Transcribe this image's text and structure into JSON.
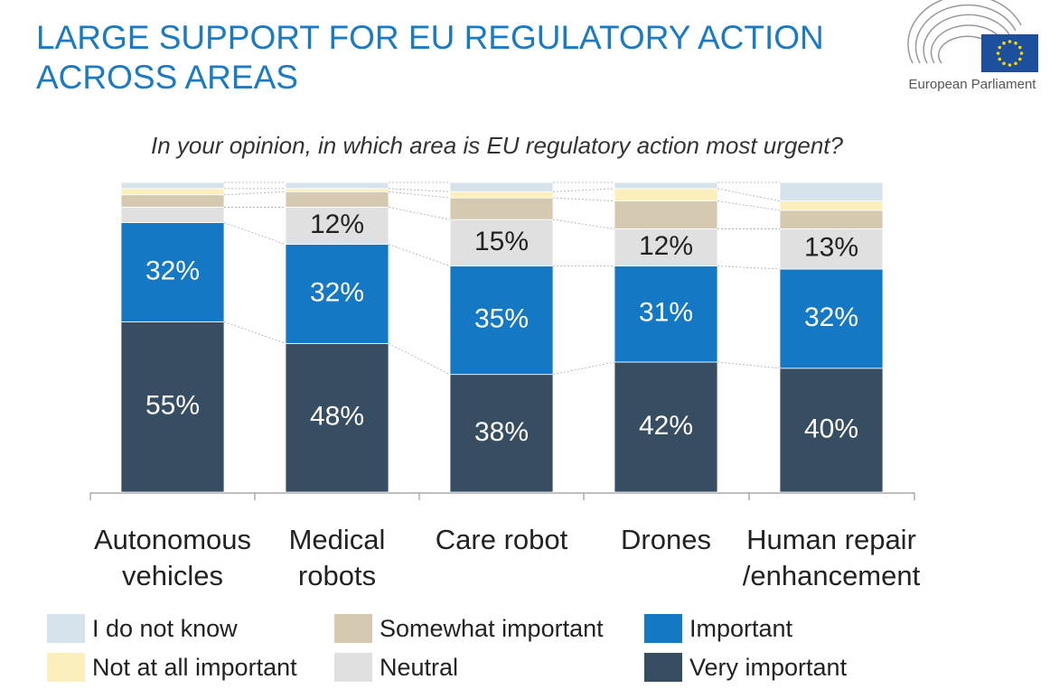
{
  "chart_data": {
    "type": "stacked-bar",
    "title": "LARGE SUPPORT FOR EU REGULATORY ACTION ACROSS AREAS",
    "subtitle": "In your opinion, in which area is EU regulatory action most urgent?",
    "logo_text": "European Parliament",
    "categories": [
      "Autonomous\nvehicles",
      "Medical\nrobots",
      "Care robot",
      "Drones",
      "Human repair\n/enhancement"
    ],
    "ylim": [
      0,
      100
    ],
    "series": [
      {
        "name": "Very important",
        "color": "#374e62",
        "values": [
          55,
          48,
          38,
          42,
          40
        ],
        "value_labels": [
          "55%",
          "48%",
          "38%",
          "42%",
          "40%"
        ]
      },
      {
        "name": "Important",
        "color": "#1478c4",
        "values": [
          32,
          32,
          35,
          31,
          32
        ],
        "value_labels": [
          "32%",
          "32%",
          "35%",
          "31%",
          "32%"
        ]
      },
      {
        "name": "Neutral",
        "color": "#e0e0e0",
        "values": [
          5,
          12,
          15,
          12,
          13
        ],
        "value_labels": [
          null,
          "12%",
          "15%",
          "12%",
          "13%"
        ]
      },
      {
        "name": "Somewhat important",
        "color": "#d6c9b1",
        "values": [
          4,
          5,
          7,
          9,
          6
        ]
      },
      {
        "name": "Not at all important",
        "color": "#fbf0bb",
        "values": [
          2,
          1,
          2,
          4,
          3
        ]
      },
      {
        "name": "I do not know",
        "color": "#d6e3ea",
        "values": [
          2,
          2,
          3,
          2,
          6
        ]
      }
    ]
  }
}
